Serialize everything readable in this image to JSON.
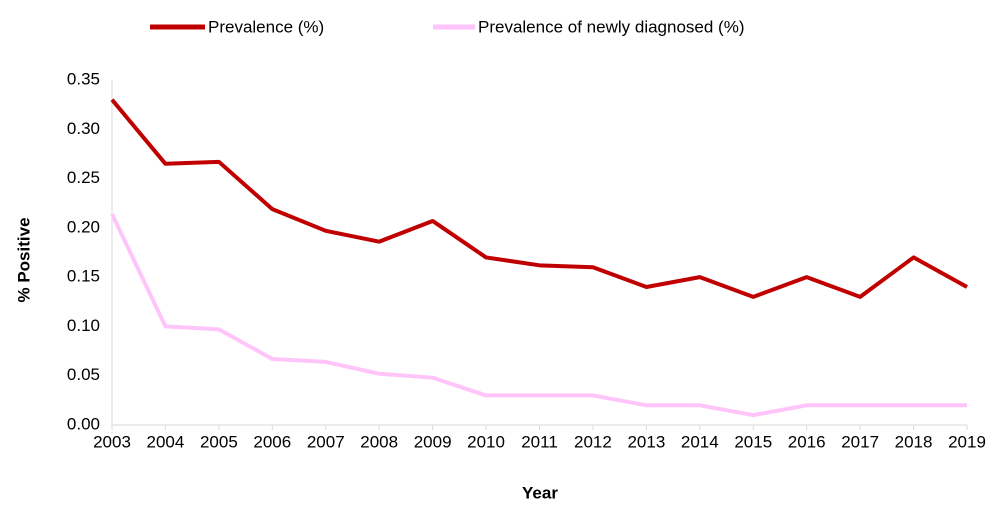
{
  "chart_data": {
    "type": "line",
    "x_label": "Year",
    "y_label": "% Positive",
    "x": [
      2003,
      2004,
      2005,
      2006,
      2007,
      2008,
      2009,
      2010,
      2011,
      2012,
      2013,
      2014,
      2015,
      2016,
      2017,
      2018,
      2019
    ],
    "xlim": [
      2003,
      2019
    ],
    "ylim": [
      0,
      0.35
    ],
    "yticks": [
      {
        "value": 0,
        "label": "0.00"
      },
      0.05,
      {
        "value": 0.1,
        "label": "0.10"
      },
      0.15,
      {
        "value": 0.2,
        "label": "0.20"
      },
      0.25,
      {
        "value": 0.3,
        "label": "0.30"
      },
      0.35
    ],
    "grid": false,
    "legend": "top",
    "series": [
      {
        "name": "Prevalence (%)",
        "color": "#c00000",
        "values": [
          0.33,
          0.265,
          0.267,
          0.219,
          0.197,
          0.186,
          0.207,
          0.17,
          0.162,
          0.16,
          0.14,
          0.15,
          0.13,
          0.15,
          0.13,
          0.17,
          0.14
        ]
      },
      {
        "name": "Prevalence of newly diagnosed (%)",
        "color": "#ffc5fb",
        "values": [
          0.214,
          0.1,
          0.097,
          0.067,
          0.064,
          0.052,
          0.048,
          0.03,
          0.03,
          0.03,
          0.02,
          0.02,
          0.01,
          0.02,
          0.02,
          0.02,
          0.02
        ]
      }
    ]
  }
}
